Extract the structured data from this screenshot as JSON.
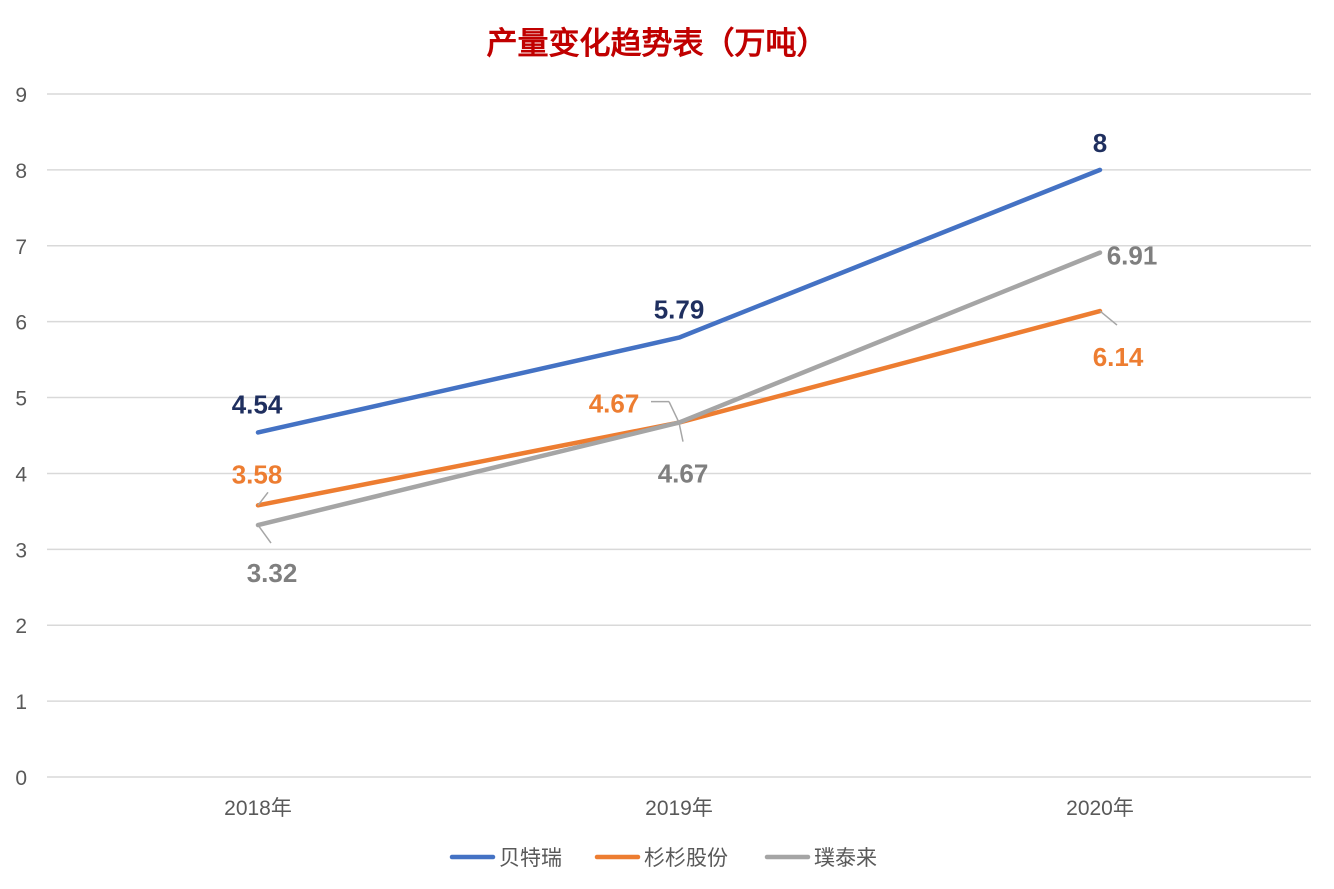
{
  "chart_data": {
    "type": "line",
    "title": "产量变化趋势表（万吨）",
    "categories": [
      "2018年",
      "2019年",
      "2020年"
    ],
    "ylim": [
      0,
      9
    ],
    "yticks": [
      "0",
      "1",
      "2",
      "3",
      "4",
      "5",
      "6",
      "7",
      "8",
      "9"
    ],
    "grid": true,
    "legend_position": "bottom",
    "series": [
      {
        "name": "贝特瑞",
        "values": [
          4.54,
          5.79,
          8
        ],
        "labels": [
          "4.54",
          "5.79",
          "8"
        ],
        "color": "#4472C4",
        "label_color": "#1F2F5F"
      },
      {
        "name": "杉杉股份",
        "values": [
          3.58,
          4.67,
          6.14
        ],
        "labels": [
          "3.58",
          "4.67",
          "6.14"
        ],
        "color": "#ED7D31",
        "label_color": "#ED7D31"
      },
      {
        "name": "璞泰来",
        "values": [
          3.32,
          4.67,
          6.91
        ],
        "labels": [
          "3.32",
          "4.67",
          "6.91"
        ],
        "color": "#A5A5A5",
        "label_color": "#7F7F7F"
      }
    ]
  },
  "colors": {
    "title": "#C00000",
    "grid": "#D9D9D9",
    "axis_text": "#595959"
  }
}
